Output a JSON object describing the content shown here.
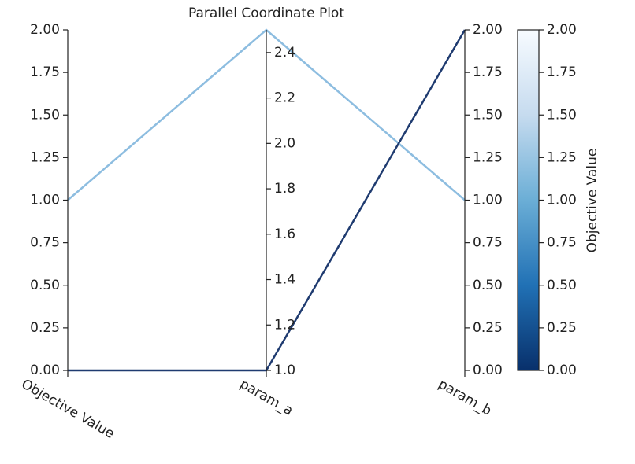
{
  "chart_data": {
    "type": "parallel",
    "title": "Parallel Coordinate Plot",
    "axes": [
      {
        "name": "Objective Value",
        "ylim": [
          0,
          2
        ],
        "yticks": [
          {
            "value": 0,
            "label": "0.00"
          },
          0.25,
          {
            "value": 0.5,
            "label": "0.50"
          },
          0.75,
          {
            "value": 1,
            "label": "1.00"
          },
          1.25,
          {
            "value": 1.5,
            "label": "1.50"
          },
          1.75,
          {
            "value": 2,
            "label": "2.00"
          }
        ]
      },
      {
        "name": "param_a",
        "ylim": [
          1.0,
          2.5
        ],
        "yticks": [
          {
            "value": 1,
            "label": "1.0"
          },
          1.2,
          1.4,
          1.6,
          1.8,
          {
            "value": 2,
            "label": "2.0"
          },
          2.2,
          2.4
        ]
      },
      {
        "name": "param_b",
        "ylim": [
          0,
          2
        ],
        "yticks": [
          {
            "value": 0,
            "label": "0.00"
          },
          0.25,
          {
            "value": 0.5,
            "label": "0.50"
          },
          0.75,
          {
            "value": 1,
            "label": "1.00"
          },
          1.25,
          {
            "value": 1.5,
            "label": "1.50"
          },
          1.75,
          {
            "value": 2,
            "label": "2.00"
          }
        ]
      }
    ],
    "series": [
      {
        "values": [
          1.0,
          2.5,
          1.0
        ],
        "color": "#8dbde0"
      },
      {
        "values": [
          0.0,
          1.0,
          2.0
        ],
        "color": "#1f3b70"
      }
    ],
    "colorbar": {
      "label": "Objective Value",
      "lim": [
        0,
        2
      ],
      "ticks": [
        {
          "value": 0,
          "label": "0.00"
        },
        0.25,
        {
          "value": 0.5,
          "label": "0.50"
        },
        0.75,
        {
          "value": 1,
          "label": "1.00"
        },
        1.25,
        {
          "value": 1.5,
          "label": "1.50"
        },
        1.75,
        {
          "value": 2,
          "label": "2.00"
        }
      ],
      "colors": [
        "#08306b",
        "#2171b5",
        "#6baed6",
        "#c6dbef",
        "#f7fbff"
      ]
    }
  }
}
